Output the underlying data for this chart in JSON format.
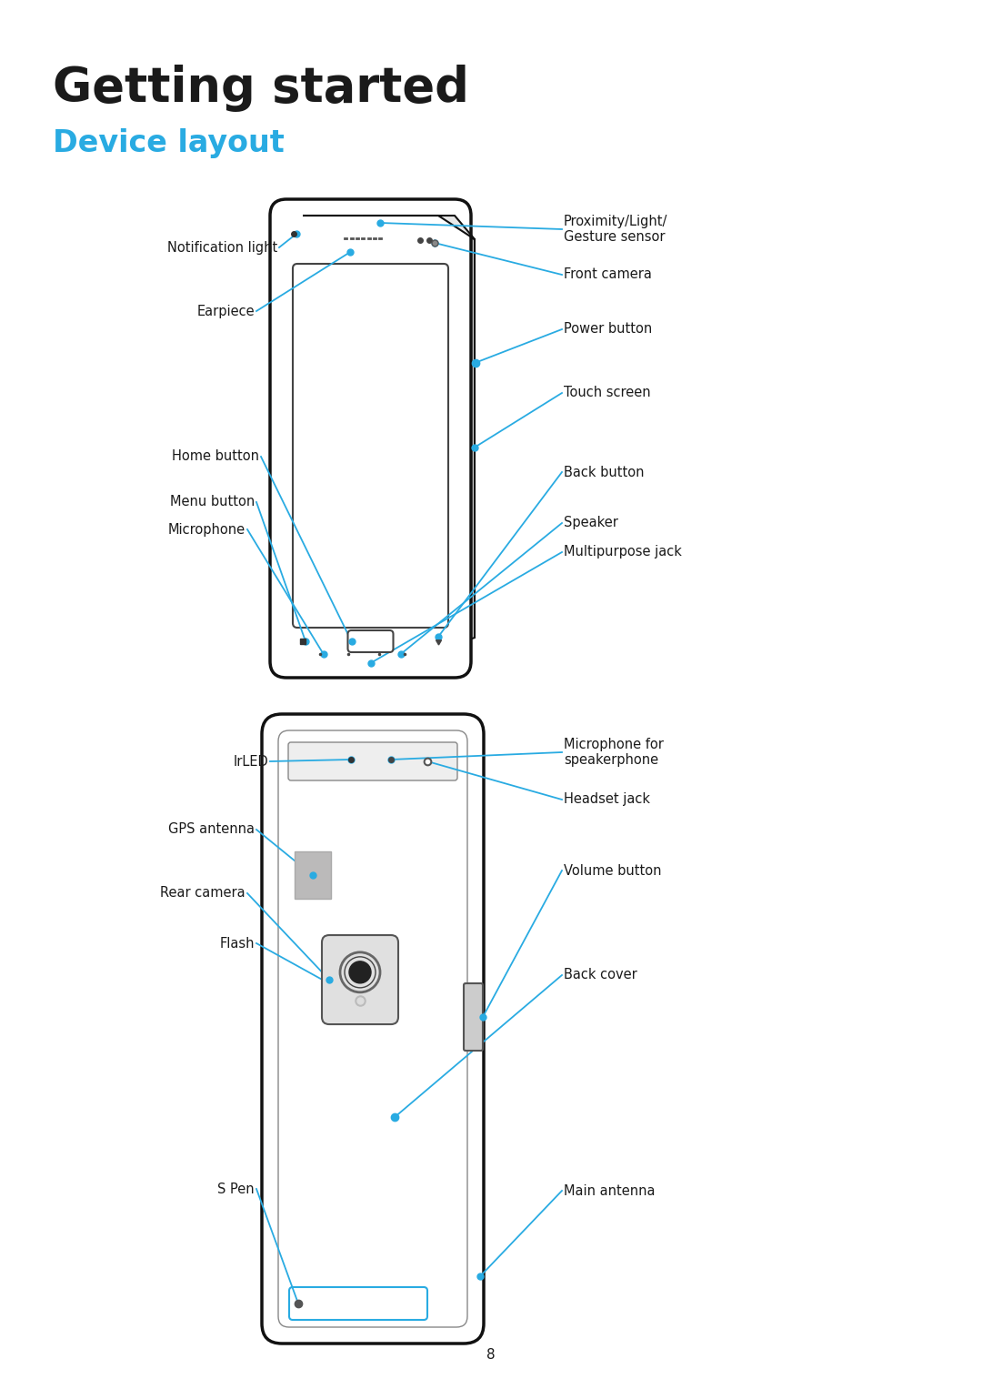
{
  "title": "Getting started",
  "subtitle": "Device layout",
  "title_color": "#1a1a1a",
  "subtitle_color": "#29ABE2",
  "bg_color": "#ffffff",
  "line_color": "#29ABE2",
  "text_color": "#1a1a1a",
  "page_number": "8",
  "title_fontsize": 38,
  "subtitle_fontsize": 24,
  "label_fontsize": 10.5
}
